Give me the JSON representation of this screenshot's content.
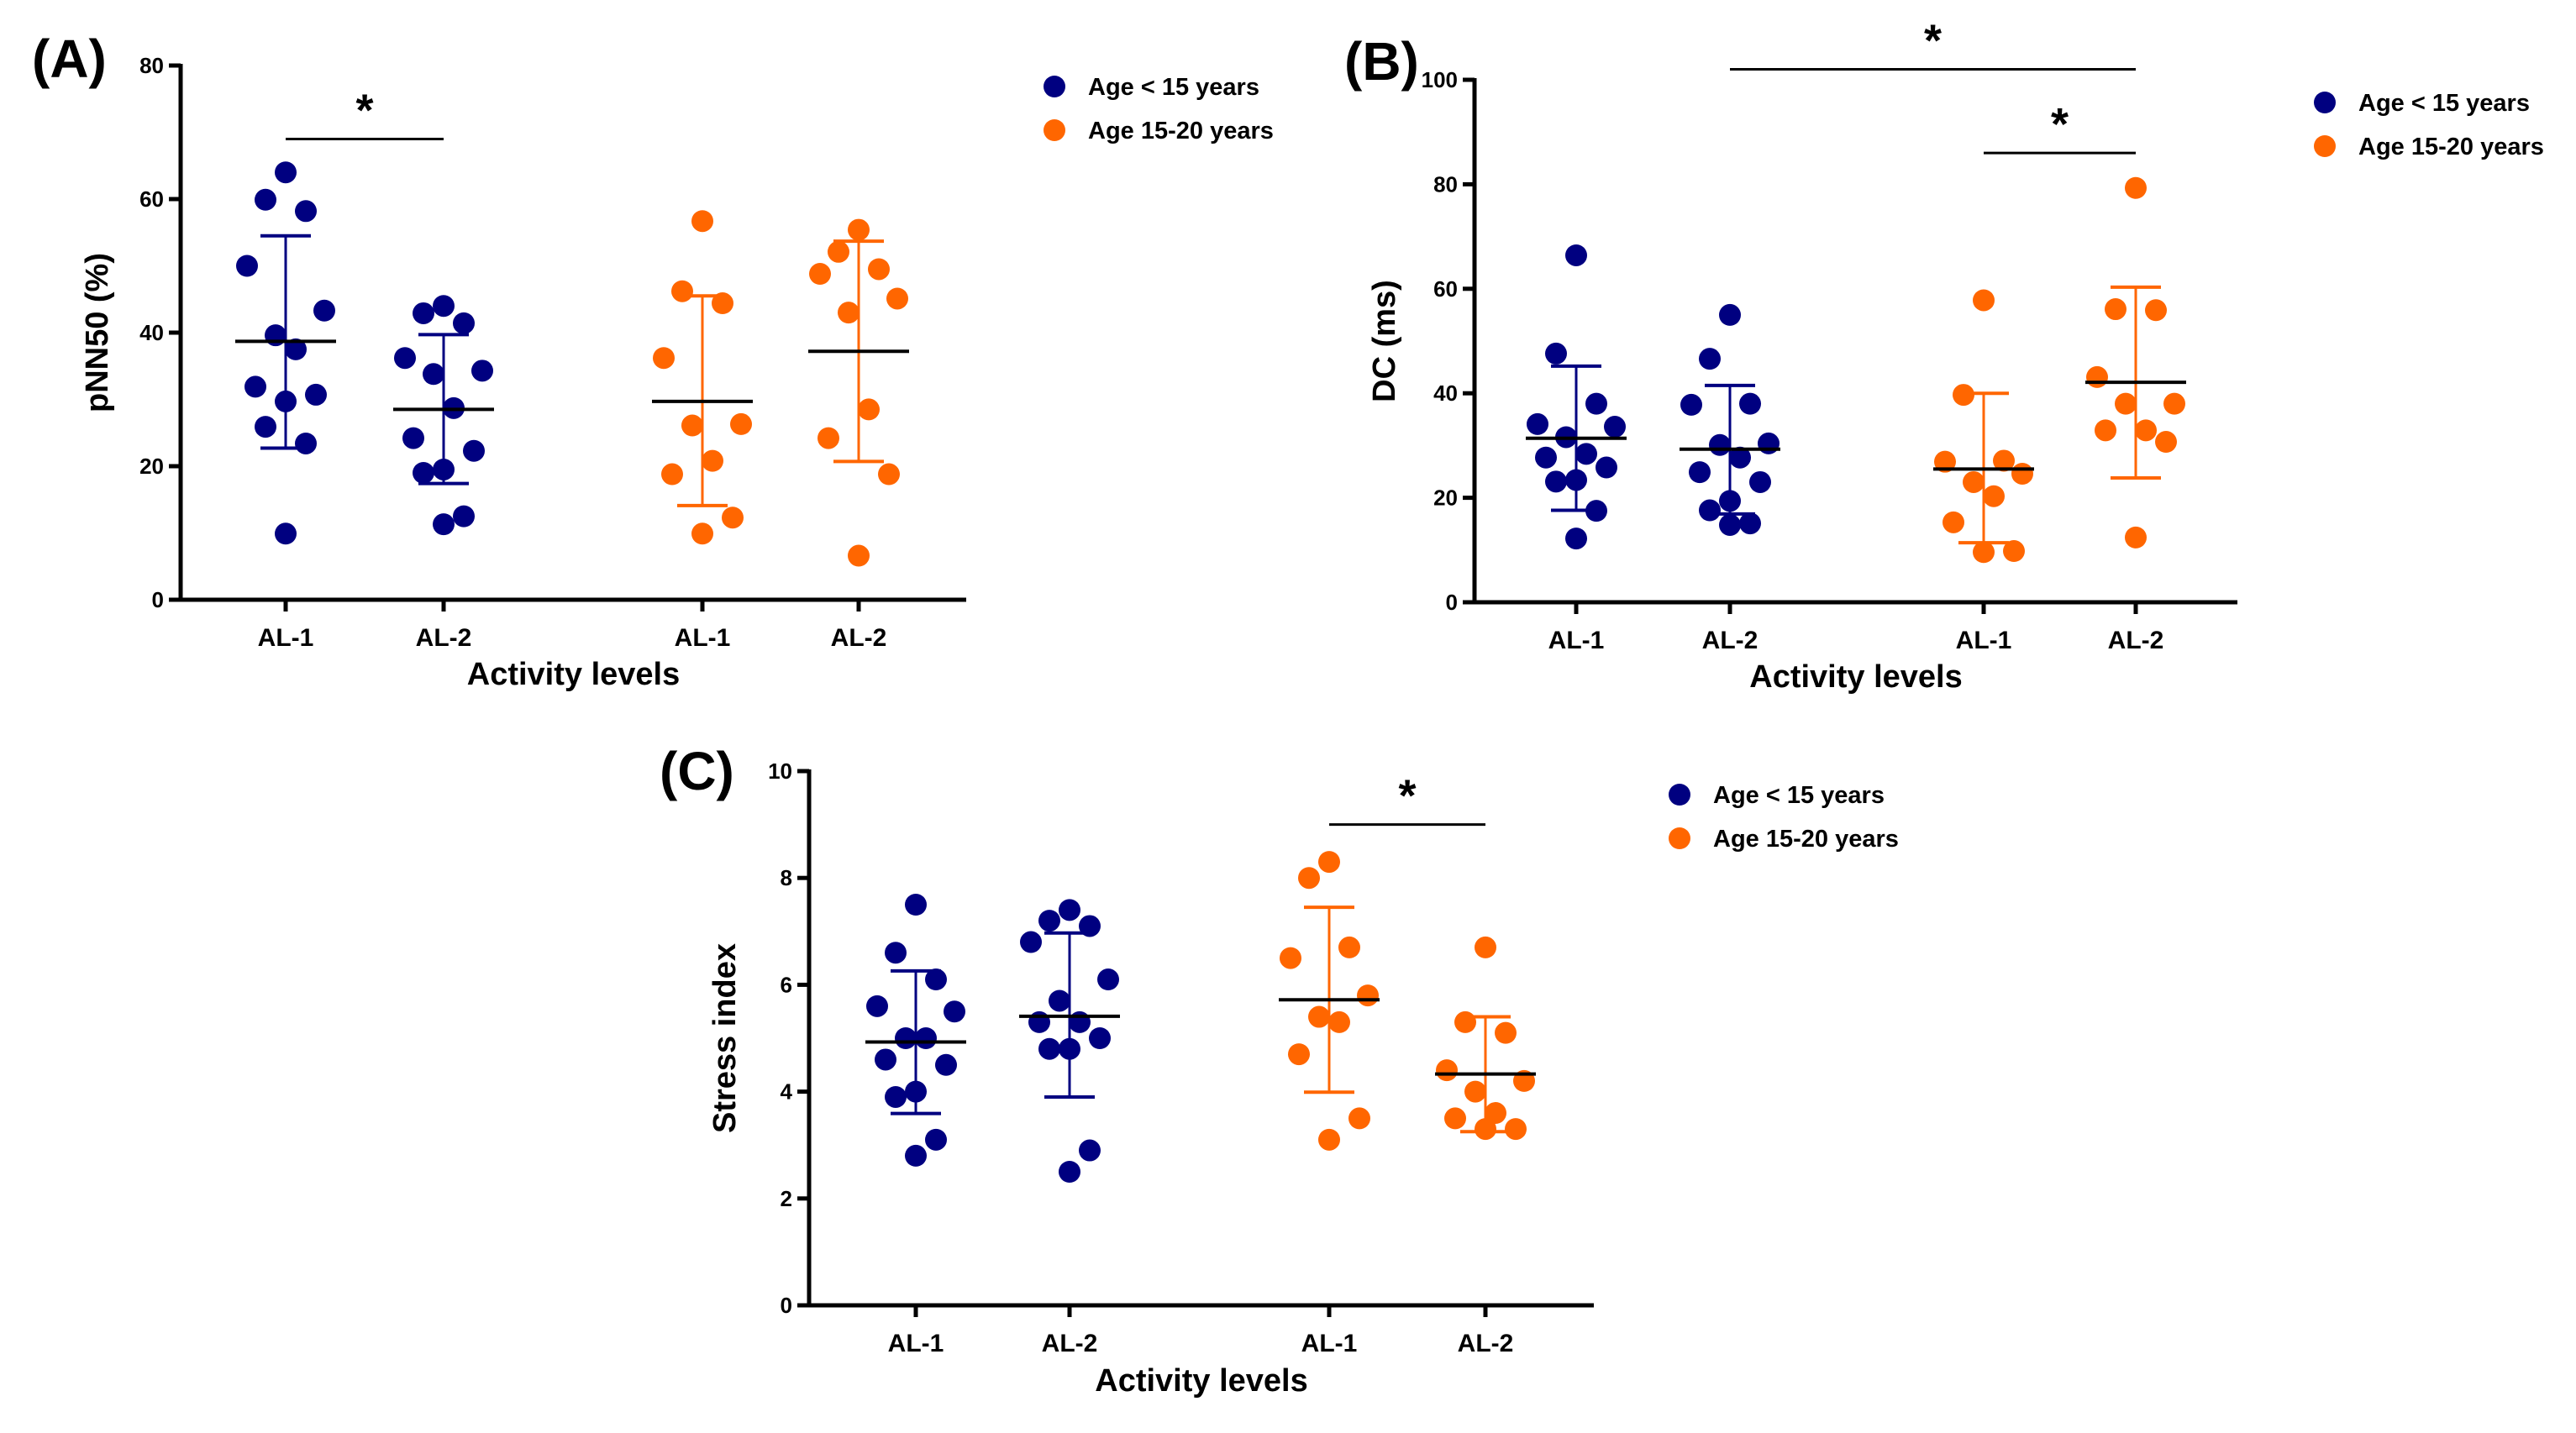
{
  "figure": {
    "legend": [
      {
        "label": "Age < 15 years",
        "color": "#000080"
      },
      {
        "label": "Age 15-20 years",
        "color": "#ff6600"
      }
    ],
    "mean_line_color": "#000000"
  },
  "chart_data": [
    {
      "panel_label": "(A)",
      "type": "scatter",
      "title": "",
      "xlabel": "Activity levels",
      "ylabel": "pNN50 (%)",
      "ylim": [
        0,
        80
      ],
      "yticks": [
        0,
        20,
        40,
        60,
        80
      ],
      "grid": false,
      "legend_position": "top-right",
      "categories": [
        "AL-1",
        "AL-2",
        "AL-1",
        "AL-2"
      ],
      "groups": [
        {
          "series": "Age < 15 years",
          "category": "AL-1",
          "values": [
            64.0,
            59.9,
            58.2,
            50.0,
            43.3,
            39.6,
            37.5,
            31.9,
            30.7,
            29.7,
            25.9,
            23.4,
            9.9
          ],
          "mean": 38.7,
          "sd_low": 22.7,
          "sd_high": 54.5
        },
        {
          "series": "Age < 15 years",
          "category": "AL-2",
          "values": [
            44.0,
            42.9,
            41.4,
            36.2,
            34.3,
            33.8,
            28.7,
            24.2,
            22.3,
            19.5,
            19.0,
            12.5,
            11.3
          ],
          "mean": 28.5,
          "sd_low": 17.4,
          "sd_high": 39.7
        },
        {
          "series": "Age 15-20 years",
          "category": "AL-1",
          "values": [
            56.7,
            46.2,
            44.4,
            36.2,
            26.3,
            26.1,
            20.8,
            18.8,
            12.3,
            9.9
          ],
          "mean": 29.7,
          "sd_low": 14.1,
          "sd_high": 45.5
        },
        {
          "series": "Age 15-20 years",
          "category": "AL-2",
          "values": [
            55.4,
            52.1,
            49.5,
            48.8,
            45.1,
            43.0,
            28.5,
            24.2,
            18.8,
            6.6
          ],
          "mean": 37.2,
          "sd_low": 20.7,
          "sd_high": 53.7
        }
      ],
      "significance": [
        {
          "from": 0,
          "to": 1,
          "label": "*",
          "level": 69
        }
      ]
    },
    {
      "panel_label": "(B)",
      "type": "scatter",
      "title": "",
      "xlabel": "Activity levels",
      "ylabel": "DC (ms)",
      "ylim": [
        0,
        100
      ],
      "yticks": [
        0,
        20,
        40,
        60,
        80,
        100
      ],
      "grid": false,
      "legend_position": "top-right",
      "categories": [
        "AL-1",
        "AL-2",
        "AL-1",
        "AL-2"
      ],
      "groups": [
        {
          "series": "Age < 15 years",
          "category": "AL-1",
          "values": [
            66.4,
            47.6,
            38.0,
            34.1,
            33.6,
            31.6,
            28.4,
            27.7,
            25.8,
            23.4,
            23.1,
            17.5,
            12.2
          ],
          "mean": 31.4,
          "sd_low": 17.6,
          "sd_high": 45.2
        },
        {
          "series": "Age < 15 years",
          "category": "AL-2",
          "values": [
            55.0,
            46.6,
            38.0,
            37.8,
            30.4,
            30.1,
            27.7,
            24.9,
            23.0,
            19.4,
            17.6,
            15.1,
            14.8
          ],
          "mean": 29.3,
          "sd_low": 16.9,
          "sd_high": 41.5
        },
        {
          "series": "Age 15-20 years",
          "category": "AL-1",
          "values": [
            57.8,
            39.7,
            27.1,
            26.9,
            24.6,
            23.0,
            20.3,
            15.3,
            9.8,
            9.6
          ],
          "mean": 25.5,
          "sd_low": 11.4,
          "sd_high": 40.0
        },
        {
          "series": "Age 15-20 years",
          "category": "AL-2",
          "values": [
            79.3,
            56.1,
            55.9,
            43.1,
            38.0,
            38.0,
            32.9,
            32.9,
            30.7,
            12.4
          ],
          "mean": 42.1,
          "sd_low": 23.8,
          "sd_high": 60.3
        }
      ],
      "significance": [
        {
          "from": 1,
          "to": 3,
          "label": "*",
          "level": 102
        },
        {
          "from": 2,
          "to": 3,
          "label": "*",
          "level": 86
        }
      ]
    },
    {
      "panel_label": "(C)",
      "type": "scatter",
      "title": "",
      "xlabel": "Activity levels",
      "ylabel": "Stress index",
      "ylim": [
        0,
        10
      ],
      "yticks": [
        0,
        2,
        4,
        6,
        8,
        10
      ],
      "grid": false,
      "legend_position": "top-right",
      "categories": [
        "AL-1",
        "AL-2",
        "AL-1",
        "AL-2"
      ],
      "groups": [
        {
          "series": "Age < 15 years",
          "category": "AL-1",
          "values": [
            7.5,
            6.6,
            6.1,
            5.6,
            5.5,
            5.0,
            5.0,
            4.6,
            4.5,
            4.0,
            3.9,
            3.1,
            2.8
          ],
          "mean": 4.93,
          "sd_low": 3.59,
          "sd_high": 6.26
        },
        {
          "series": "Age < 15 years",
          "category": "AL-2",
          "values": [
            7.4,
            7.2,
            7.1,
            6.8,
            6.1,
            5.7,
            5.3,
            5.3,
            5.0,
            4.8,
            4.8,
            2.9,
            2.5
          ],
          "mean": 5.41,
          "sd_low": 3.9,
          "sd_high": 6.97
        },
        {
          "series": "Age 15-20 years",
          "category": "AL-1",
          "values": [
            8.3,
            8.0,
            6.7,
            6.5,
            5.8,
            5.4,
            5.3,
            4.7,
            3.5,
            3.1
          ],
          "mean": 5.72,
          "sd_low": 3.99,
          "sd_high": 7.45
        },
        {
          "series": "Age 15-20 years",
          "category": "AL-2",
          "values": [
            6.7,
            5.3,
            5.1,
            4.4,
            4.2,
            4.0,
            3.6,
            3.5,
            3.3,
            3.3
          ],
          "mean": 4.33,
          "sd_low": 3.25,
          "sd_high": 5.4
        }
      ],
      "significance": [
        {
          "from": 2,
          "to": 3,
          "label": "*",
          "level": 9.0
        }
      ]
    }
  ]
}
